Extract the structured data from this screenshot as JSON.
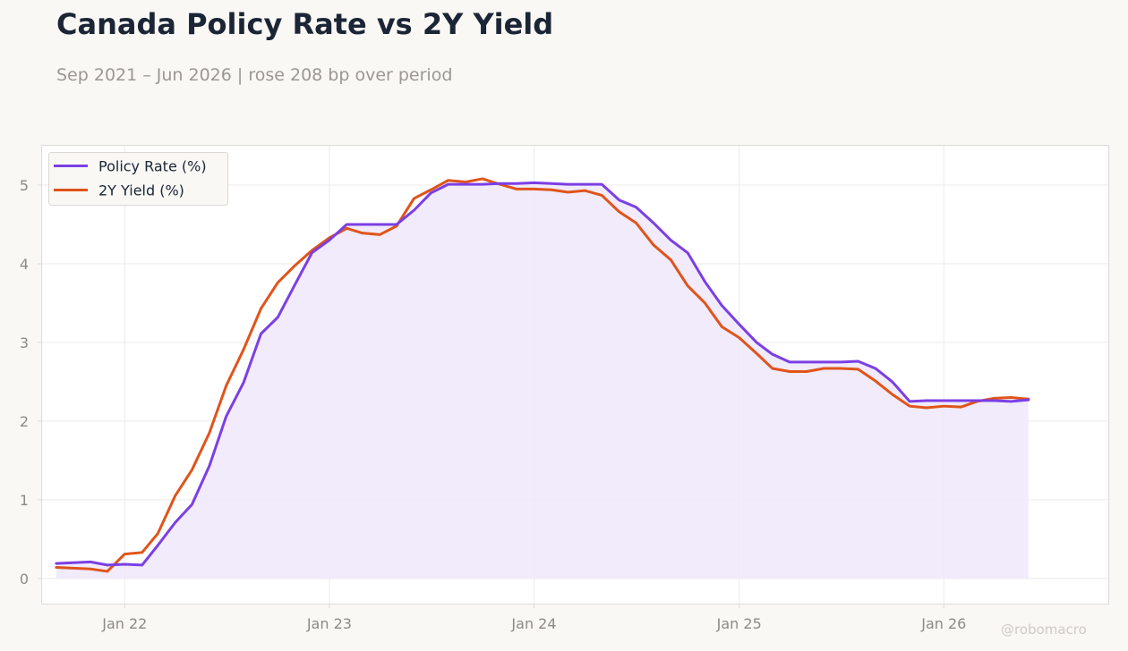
{
  "title": "Canada Policy Rate vs 2Y Yield",
  "subtitle": "Sep 2021 – Jun 2026 | rose 208 bp over period",
  "watermark": "@robomacro",
  "colors": {
    "policy_rate": "#7b3fe4",
    "yield_2y": "#e0541a",
    "fill": "#efe7fb",
    "grid": "#ecebea",
    "frame": "#dddbd6",
    "background": "#f9f8f5"
  },
  "chart_data": {
    "type": "line",
    "x": [
      "2021-09",
      "2021-10",
      "2021-11",
      "2021-12",
      "2022-01",
      "2022-02",
      "2022-03",
      "2022-04",
      "2022-05",
      "2022-06",
      "2022-07",
      "2022-08",
      "2022-09",
      "2022-10",
      "2022-11",
      "2022-12",
      "2023-01",
      "2023-02",
      "2023-03",
      "2023-04",
      "2023-05",
      "2023-06",
      "2023-07",
      "2023-08",
      "2023-09",
      "2023-10",
      "2023-11",
      "2023-12",
      "2024-01",
      "2024-02",
      "2024-03",
      "2024-04",
      "2024-05",
      "2024-06",
      "2024-07",
      "2024-08",
      "2024-09",
      "2024-10",
      "2024-11",
      "2024-12",
      "2025-01",
      "2025-02",
      "2025-03",
      "2025-04",
      "2025-05",
      "2025-06",
      "2025-07",
      "2025-08",
      "2025-09",
      "2025-10",
      "2025-11",
      "2025-12",
      "2026-01",
      "2026-02",
      "2026-03",
      "2026-04",
      "2026-05",
      "2026-06"
    ],
    "series": [
      {
        "name": "Policy Rate (%)",
        "values": [
          0.19,
          0.2,
          0.21,
          0.17,
          0.18,
          0.17,
          0.42,
          0.71,
          0.94,
          1.43,
          2.06,
          2.49,
          3.11,
          3.32,
          3.74,
          4.14,
          4.3,
          4.5,
          4.5,
          4.5,
          4.5,
          4.68,
          4.9,
          5.01,
          5.01,
          5.01,
          5.02,
          5.02,
          5.03,
          5.02,
          5.01,
          5.01,
          5.01,
          4.81,
          4.72,
          4.52,
          4.3,
          4.14,
          3.77,
          3.47,
          3.23,
          3.0,
          2.85,
          2.75,
          2.75,
          2.75,
          2.75,
          2.76,
          2.67,
          2.5,
          2.25,
          2.26,
          2.26,
          2.26,
          2.26,
          2.26,
          2.25,
          2.27
        ],
        "fill": true
      },
      {
        "name": "2Y Yield (%)",
        "values": [
          0.14,
          0.13,
          0.12,
          0.09,
          0.31,
          0.33,
          0.57,
          1.05,
          1.38,
          1.85,
          2.45,
          2.91,
          3.43,
          3.76,
          3.98,
          4.17,
          4.33,
          4.45,
          4.39,
          4.37,
          4.48,
          4.83,
          4.94,
          5.06,
          5.04,
          5.08,
          5.01,
          4.95,
          4.95,
          4.94,
          4.91,
          4.93,
          4.87,
          4.66,
          4.52,
          4.24,
          4.05,
          3.72,
          3.5,
          3.2,
          3.06,
          2.86,
          2.67,
          2.63,
          2.63,
          2.67,
          2.67,
          2.66,
          2.51,
          2.34,
          2.19,
          2.17,
          2.19,
          2.18,
          2.25,
          2.29,
          2.3,
          2.28
        ]
      }
    ],
    "x_ticks": [
      "Jan 22",
      "Jan 23",
      "Jan 24",
      "Jan 25",
      "Jan 26"
    ],
    "y_ticks": [
      0,
      1,
      2,
      3,
      4,
      5
    ],
    "ylim": [
      -0.32,
      5.5
    ],
    "grid": true,
    "legend": "upper-left"
  }
}
